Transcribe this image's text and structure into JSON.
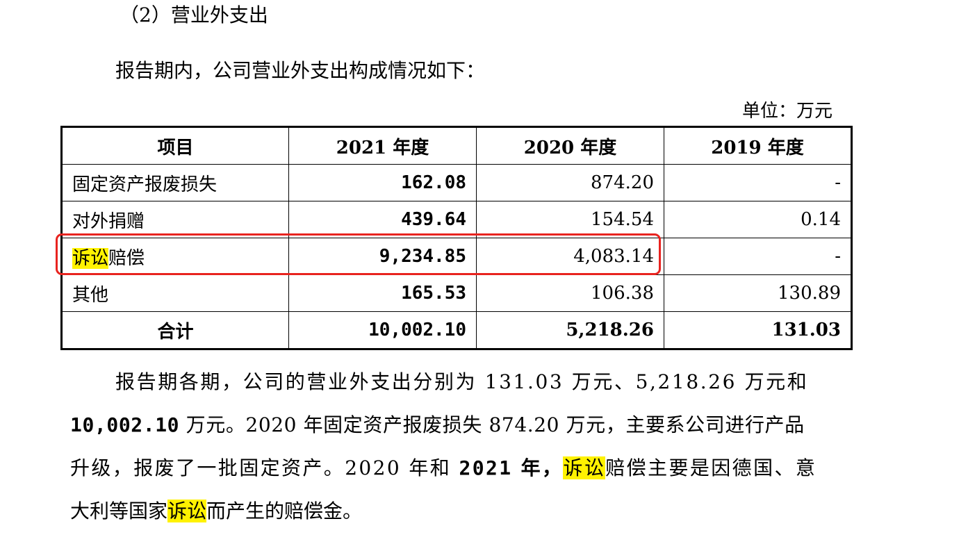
{
  "heading": "（2）营业外支出",
  "intro": "报告期内，公司营业外支出构成情况如下：",
  "unit": "单位：万元",
  "table": {
    "headers": [
      "项目",
      "2021 年度",
      "2020 年度",
      "2019 年度"
    ],
    "rows": [
      {
        "item": "固定资产报废损失",
        "y2021": "162.08",
        "y2020": "874.20",
        "y2019": "-"
      },
      {
        "item": "对外捐赠",
        "y2021": "439.64",
        "y2020": "154.54",
        "y2019": "0.14"
      },
      {
        "item_highlight": "诉讼",
        "item_rest": "赔偿",
        "y2021": "9,234.85",
        "y2020": "4,083.14",
        "y2019": "-"
      },
      {
        "item": "其他",
        "y2021": "165.53",
        "y2020": "106.38",
        "y2019": "130.89"
      }
    ],
    "total": {
      "item": "合计",
      "y2021": "10,002.10",
      "y2020": "5,218.26",
      "y2019": "131.03"
    }
  },
  "paragraph": {
    "l1": "报告期各期，公司的营业外支出分别为 131.03 万元、5,218.26 万元和",
    "l2_bold": "10,002.10",
    "l2_rest": " 万元。2020 年固定资产报废损失 874.20 万元，主要系公司进行产品",
    "l3_a": "升级，报废了一批固定资产。2020 年和 ",
    "l3_bold": "2021",
    "l3_b": " 年，",
    "l3_hl": "诉讼",
    "l3_c": "赔偿主要是因德国、意",
    "l4_a": "大利等国家",
    "l4_hl": "诉讼",
    "l4_b": "而产生的赔偿金。"
  },
  "colors": {
    "highlight": "#fff200",
    "annotation_box": "#e8231f"
  }
}
